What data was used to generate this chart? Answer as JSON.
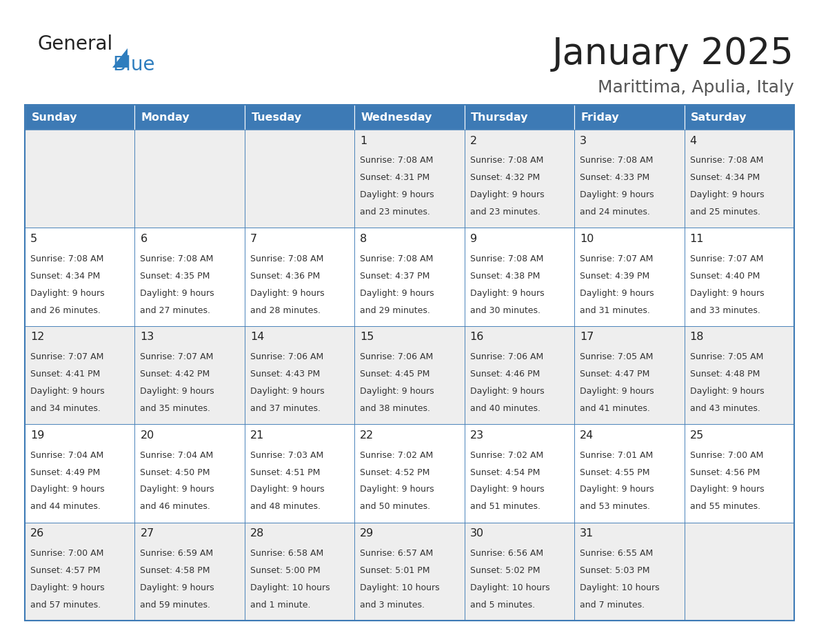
{
  "title": "January 2025",
  "subtitle": "Marittima, Apulia, Italy",
  "header_color": "#3d7ab5",
  "header_text_color": "#ffffff",
  "border_color": "#3d7ab5",
  "days_of_week": [
    "Sunday",
    "Monday",
    "Tuesday",
    "Wednesday",
    "Thursday",
    "Friday",
    "Saturday"
  ],
  "weeks": [
    [
      {
        "day": "",
        "sunrise": "",
        "sunset": "",
        "daylight": ""
      },
      {
        "day": "",
        "sunrise": "",
        "sunset": "",
        "daylight": ""
      },
      {
        "day": "",
        "sunrise": "",
        "sunset": "",
        "daylight": ""
      },
      {
        "day": "1",
        "sunrise": "7:08 AM",
        "sunset": "4:31 PM",
        "daylight": "9 hours\nand 23 minutes."
      },
      {
        "day": "2",
        "sunrise": "7:08 AM",
        "sunset": "4:32 PM",
        "daylight": "9 hours\nand 23 minutes."
      },
      {
        "day": "3",
        "sunrise": "7:08 AM",
        "sunset": "4:33 PM",
        "daylight": "9 hours\nand 24 minutes."
      },
      {
        "day": "4",
        "sunrise": "7:08 AM",
        "sunset": "4:34 PM",
        "daylight": "9 hours\nand 25 minutes."
      }
    ],
    [
      {
        "day": "5",
        "sunrise": "7:08 AM",
        "sunset": "4:34 PM",
        "daylight": "9 hours\nand 26 minutes."
      },
      {
        "day": "6",
        "sunrise": "7:08 AM",
        "sunset": "4:35 PM",
        "daylight": "9 hours\nand 27 minutes."
      },
      {
        "day": "7",
        "sunrise": "7:08 AM",
        "sunset": "4:36 PM",
        "daylight": "9 hours\nand 28 minutes."
      },
      {
        "day": "8",
        "sunrise": "7:08 AM",
        "sunset": "4:37 PM",
        "daylight": "9 hours\nand 29 minutes."
      },
      {
        "day": "9",
        "sunrise": "7:08 AM",
        "sunset": "4:38 PM",
        "daylight": "9 hours\nand 30 minutes."
      },
      {
        "day": "10",
        "sunrise": "7:07 AM",
        "sunset": "4:39 PM",
        "daylight": "9 hours\nand 31 minutes."
      },
      {
        "day": "11",
        "sunrise": "7:07 AM",
        "sunset": "4:40 PM",
        "daylight": "9 hours\nand 33 minutes."
      }
    ],
    [
      {
        "day": "12",
        "sunrise": "7:07 AM",
        "sunset": "4:41 PM",
        "daylight": "9 hours\nand 34 minutes."
      },
      {
        "day": "13",
        "sunrise": "7:07 AM",
        "sunset": "4:42 PM",
        "daylight": "9 hours\nand 35 minutes."
      },
      {
        "day": "14",
        "sunrise": "7:06 AM",
        "sunset": "4:43 PM",
        "daylight": "9 hours\nand 37 minutes."
      },
      {
        "day": "15",
        "sunrise": "7:06 AM",
        "sunset": "4:45 PM",
        "daylight": "9 hours\nand 38 minutes."
      },
      {
        "day": "16",
        "sunrise": "7:06 AM",
        "sunset": "4:46 PM",
        "daylight": "9 hours\nand 40 minutes."
      },
      {
        "day": "17",
        "sunrise": "7:05 AM",
        "sunset": "4:47 PM",
        "daylight": "9 hours\nand 41 minutes."
      },
      {
        "day": "18",
        "sunrise": "7:05 AM",
        "sunset": "4:48 PM",
        "daylight": "9 hours\nand 43 minutes."
      }
    ],
    [
      {
        "day": "19",
        "sunrise": "7:04 AM",
        "sunset": "4:49 PM",
        "daylight": "9 hours\nand 44 minutes."
      },
      {
        "day": "20",
        "sunrise": "7:04 AM",
        "sunset": "4:50 PM",
        "daylight": "9 hours\nand 46 minutes."
      },
      {
        "day": "21",
        "sunrise": "7:03 AM",
        "sunset": "4:51 PM",
        "daylight": "9 hours\nand 48 minutes."
      },
      {
        "day": "22",
        "sunrise": "7:02 AM",
        "sunset": "4:52 PM",
        "daylight": "9 hours\nand 50 minutes."
      },
      {
        "day": "23",
        "sunrise": "7:02 AM",
        "sunset": "4:54 PM",
        "daylight": "9 hours\nand 51 minutes."
      },
      {
        "day": "24",
        "sunrise": "7:01 AM",
        "sunset": "4:55 PM",
        "daylight": "9 hours\nand 53 minutes."
      },
      {
        "day": "25",
        "sunrise": "7:00 AM",
        "sunset": "4:56 PM",
        "daylight": "9 hours\nand 55 minutes."
      }
    ],
    [
      {
        "day": "26",
        "sunrise": "7:00 AM",
        "sunset": "4:57 PM",
        "daylight": "9 hours\nand 57 minutes."
      },
      {
        "day": "27",
        "sunrise": "6:59 AM",
        "sunset": "4:58 PM",
        "daylight": "9 hours\nand 59 minutes."
      },
      {
        "day": "28",
        "sunrise": "6:58 AM",
        "sunset": "5:00 PM",
        "daylight": "10 hours\nand 1 minute."
      },
      {
        "day": "29",
        "sunrise": "6:57 AM",
        "sunset": "5:01 PM",
        "daylight": "10 hours\nand 3 minutes."
      },
      {
        "day": "30",
        "sunrise": "6:56 AM",
        "sunset": "5:02 PM",
        "daylight": "10 hours\nand 5 minutes."
      },
      {
        "day": "31",
        "sunrise": "6:55 AM",
        "sunset": "5:03 PM",
        "daylight": "10 hours\nand 7 minutes."
      },
      {
        "day": "",
        "sunrise": "",
        "sunset": "",
        "daylight": ""
      }
    ]
  ],
  "logo_general_color": "#222222",
  "logo_blue_color": "#2E7DBE",
  "logo_triangle_color": "#2E7DBE",
  "title_color": "#222222",
  "subtitle_color": "#555555",
  "day_number_color": "#222222",
  "cell_text_color": "#333333",
  "row_bg_odd": "#eeeeee",
  "row_bg_even": "#ffffff"
}
